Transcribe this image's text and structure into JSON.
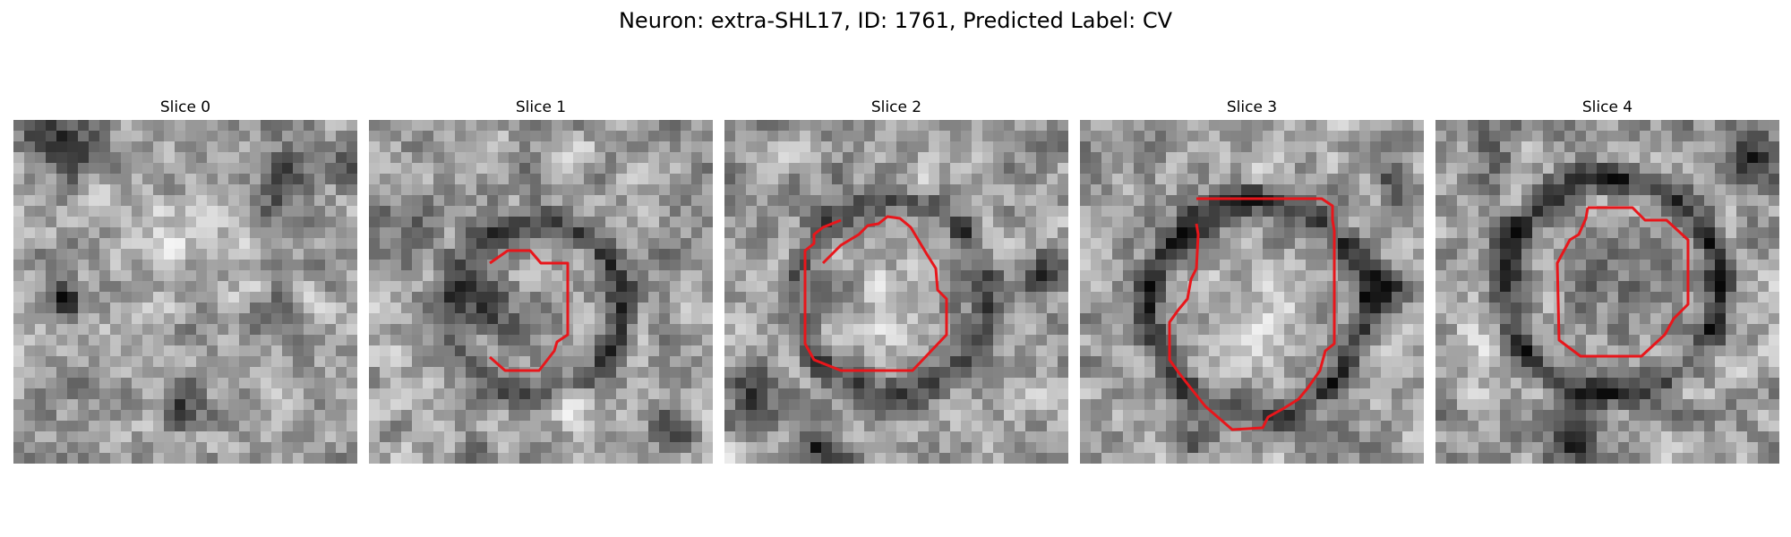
{
  "figure": {
    "title": "Neuron: extra-SHL17, ID: 1761, Predicted Label: CV"
  },
  "panels": [
    {
      "title": "Slice 0",
      "has_contour": false
    },
    {
      "title": "Slice 1",
      "has_contour": true
    },
    {
      "title": "Slice 2",
      "has_contour": true
    },
    {
      "title": "Slice 3",
      "has_contour": true
    },
    {
      "title": "Slice 4",
      "has_contour": true
    }
  ],
  "colors": {
    "contour": "#e8161b",
    "background": "#ffffff"
  }
}
